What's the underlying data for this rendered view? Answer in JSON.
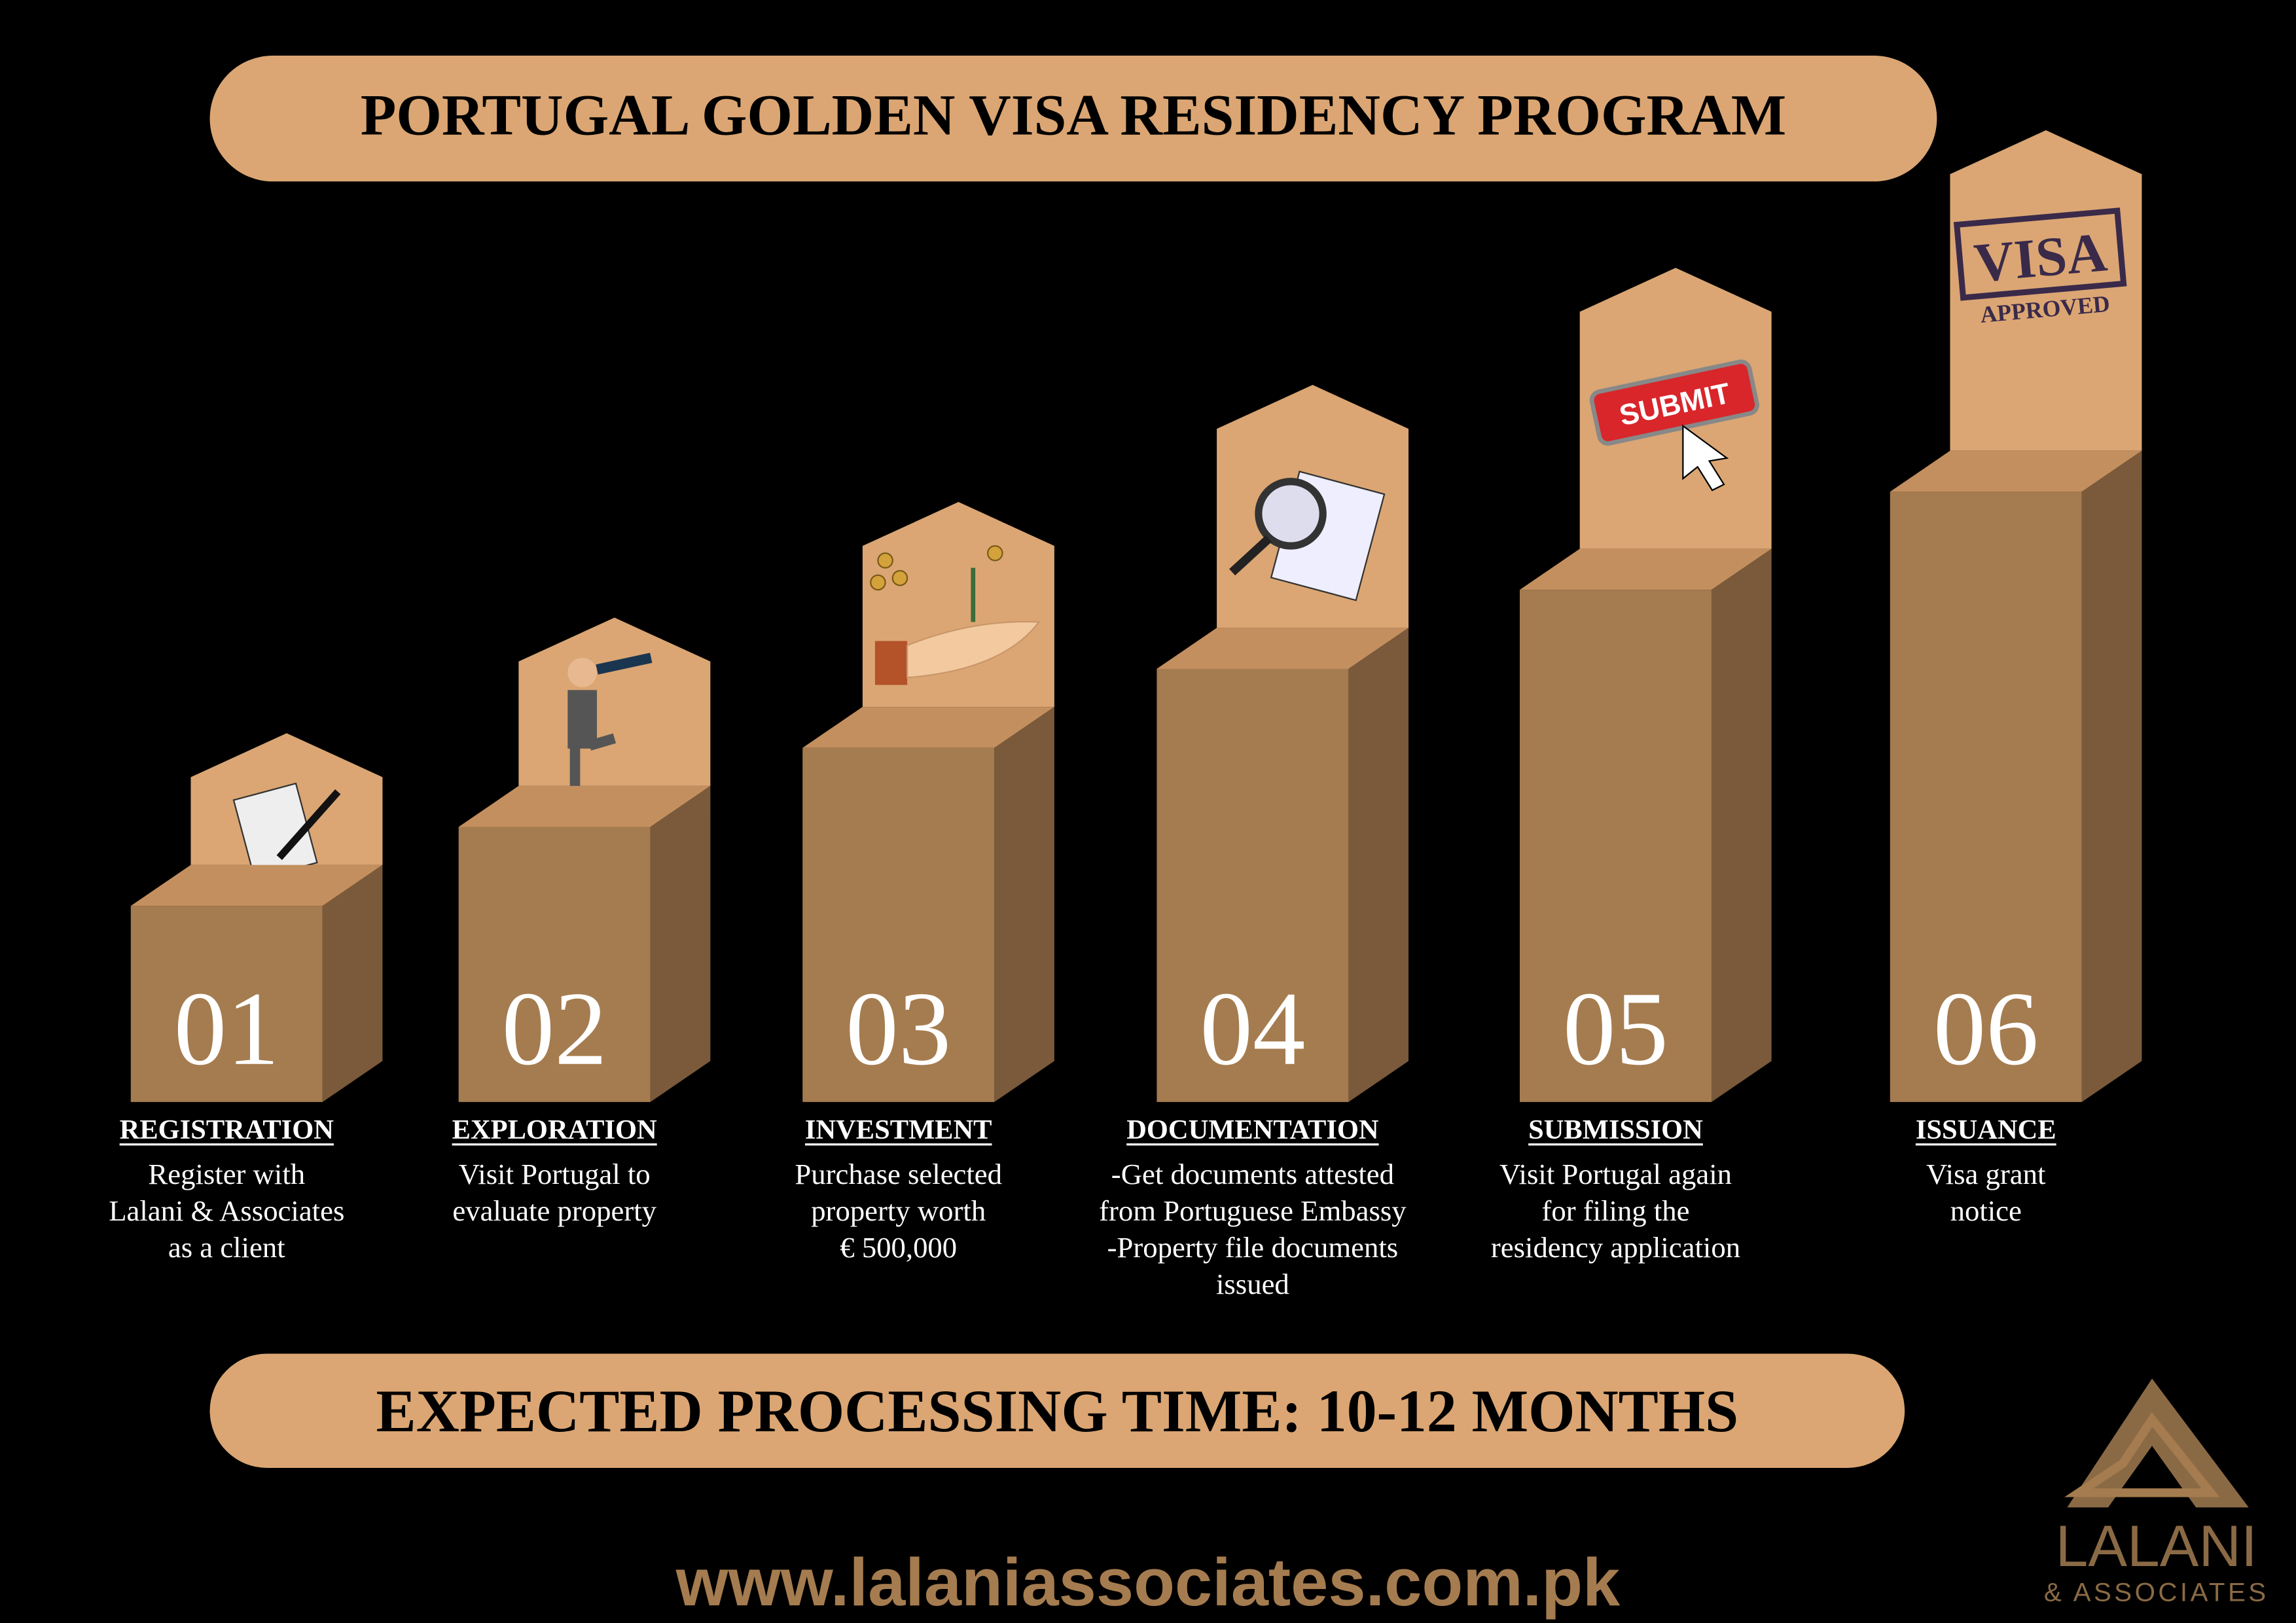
{
  "header": {
    "title": "PORTUGAL GOLDEN VISA RESIDENCY PROGRAM"
  },
  "steps": [
    {
      "number": "01",
      "heading": "REGISTRATION",
      "description": [
        "Register with",
        "Lalani & Associates",
        "as a client"
      ]
    },
    {
      "number": "02",
      "heading": "EXPLORATION",
      "description": [
        "Visit Portugal to",
        "evaluate property"
      ]
    },
    {
      "number": "03",
      "heading": "INVESTMENT",
      "description": [
        "Purchase selected",
        "property worth",
        "€ 500,000"
      ]
    },
    {
      "number": "04",
      "heading": "DOCUMENTATION",
      "description": [
        "-Get documents attested",
        "from Portuguese Embassy",
        "-Property file documents",
        "issued"
      ]
    },
    {
      "number": "05",
      "heading": "SUBMISSION",
      "description": [
        "Visit Portugal again",
        "for filing the",
        "residency application"
      ],
      "icon_text": [
        "SUBMIT"
      ]
    },
    {
      "number": "06",
      "heading": "ISSUANCE",
      "description": [
        "Visa grant",
        "notice"
      ],
      "icon_text": [
        "VISA",
        "APPROVED"
      ]
    }
  ],
  "footer": {
    "processing_time": "EXPECTED PROCESSING TIME: 10-12 MONTHS",
    "website": "www.lalaniassociates.com.pk"
  },
  "logo": {
    "name": "LALANI",
    "subtitle": "& ASSOCIATES"
  }
}
